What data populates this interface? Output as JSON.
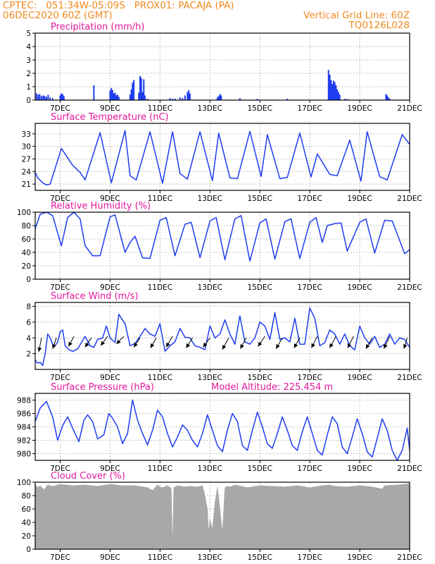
{
  "header": {
    "line1": "CPTEC:   051:34W-05:09S   PROX01: PACAJA (PA)",
    "line2": "06DEC2020 60Z (GMT)",
    "grid_note": "Vertical Grid Line: 60Z",
    "run_id": "TQ0126L028"
  },
  "colors": {
    "header": "#f08a1e",
    "title": "#e2179b",
    "series": "#1e3cf0",
    "cloud": "#a8a8a8",
    "arrow": "#000000"
  },
  "x_axis": {
    "range": [
      6,
      21
    ],
    "tick_values": [
      7,
      9,
      11,
      13,
      15,
      17,
      19,
      21
    ],
    "tick_labels": [
      "7DEC",
      "9DEC",
      "11DEC",
      "13DEC",
      "15DEC",
      "17DEC",
      "19DEC",
      "21DEC"
    ]
  },
  "chart_data": [
    {
      "type": "bar",
      "title": "Precipitation (mm/h)",
      "ylim": [
        0,
        5
      ],
      "yticks": [
        0,
        1,
        2,
        3,
        4,
        5
      ],
      "x": [
        6.05,
        6.12,
        6.18,
        6.25,
        6.32,
        6.38,
        6.45,
        6.52,
        6.6,
        6.7,
        7.0,
        7.05,
        7.1,
        7.15,
        8.35,
        9.0,
        9.05,
        9.1,
        9.15,
        9.2,
        9.25,
        9.3,
        9.35,
        9.8,
        9.85,
        9.9,
        9.95,
        10.15,
        10.2,
        10.25,
        10.3,
        10.35,
        10.4,
        10.5,
        11.4,
        11.5,
        11.6,
        11.8,
        11.9,
        12.0,
        12.1,
        12.15,
        12.2,
        13.3,
        13.35,
        13.4,
        13.45,
        14.2,
        14.9,
        16.1,
        17.75,
        17.8,
        17.85,
        17.9,
        17.95,
        18.0,
        18.05,
        18.1,
        18.15,
        18.2,
        18.4,
        18.5,
        18.6,
        20.05,
        20.1,
        20.15,
        20.2
      ],
      "values": [
        0.5,
        0.4,
        0.45,
        0.3,
        0.35,
        0.3,
        0.25,
        0.4,
        0.2,
        0.15,
        0.35,
        0.5,
        0.45,
        0.3,
        1.1,
        0.7,
        0.9,
        0.75,
        0.5,
        0.55,
        0.35,
        0.4,
        0.25,
        0.4,
        0.8,
        1.3,
        1.5,
        0.55,
        1.8,
        1.65,
        0.6,
        1.55,
        0.35,
        0.1,
        0.15,
        0.1,
        0.12,
        0.2,
        0.15,
        0.35,
        0.6,
        0.75,
        0.5,
        0.2,
        0.3,
        0.45,
        0.35,
        0.15,
        0.1,
        0.1,
        2.25,
        1.9,
        1.5,
        1.2,
        1.45,
        1.35,
        1.1,
        0.8,
        0.6,
        0.4,
        0.1,
        0.08,
        0.05,
        0.45,
        0.35,
        0.2,
        0.1
      ]
    },
    {
      "type": "line",
      "title": "Surface Temperature (nC)",
      "ylim": [
        19.5,
        35.5
      ],
      "yticks": [
        21,
        24,
        27,
        30,
        33
      ],
      "series": [
        {
          "x": [
            6.0,
            6.1,
            6.3,
            6.45,
            6.6,
            7.05,
            7.5,
            7.8,
            8.0,
            8.6,
            9.05,
            9.6,
            9.8,
            10.05,
            10.6,
            11.1,
            11.5,
            11.8,
            12.1,
            12.6,
            13.1,
            13.35,
            13.8,
            14.1,
            14.6,
            15.05,
            15.3,
            15.8,
            16.1,
            16.6,
            17.05,
            17.3,
            17.8,
            18.1,
            18.6,
            19.05,
            19.3,
            19.8,
            20.1,
            20.7,
            21.0
          ],
          "y": [
            23.8,
            22.5,
            21.3,
            20.8,
            21.0,
            29.5,
            25.5,
            23.8,
            22.0,
            33.3,
            21.3,
            33.8,
            23.0,
            22.0,
            33.5,
            21.2,
            33.5,
            23.5,
            22.2,
            33.5,
            21.8,
            33.2,
            22.5,
            22.3,
            33.6,
            22.8,
            32.8,
            22.3,
            22.6,
            33.2,
            22.7,
            28.2,
            23.3,
            23.0,
            31.5,
            21.7,
            33.5,
            22.8,
            22.0,
            32.8,
            30.5
          ]
        }
      ]
    },
    {
      "type": "line",
      "title": "Relative Humidity (%)",
      "ylim": [
        0,
        100
      ],
      "yticks": [
        0,
        20,
        40,
        60,
        80,
        100
      ],
      "series": [
        {
          "x": [
            6.0,
            6.2,
            6.45,
            6.7,
            7.05,
            7.3,
            7.55,
            7.8,
            8.0,
            8.3,
            8.6,
            9.0,
            9.2,
            9.6,
            9.8,
            10.0,
            10.3,
            10.6,
            11.0,
            11.25,
            11.6,
            12.0,
            12.25,
            12.6,
            13.0,
            13.25,
            13.6,
            14.0,
            14.25,
            14.6,
            15.0,
            15.25,
            15.6,
            16.0,
            16.25,
            16.6,
            17.0,
            17.25,
            17.5,
            17.7,
            18.0,
            18.25,
            18.5,
            19.0,
            19.25,
            19.6,
            20.0,
            20.3,
            20.8,
            21.0
          ],
          "y": [
            75.0,
            97.0,
            100.0,
            95.0,
            50.0,
            92.0,
            100.0,
            90.0,
            50.0,
            35.0,
            35.0,
            93.0,
            96.0,
            40.0,
            55.0,
            64.0,
            32.0,
            31.0,
            88.0,
            92.0,
            35.0,
            82.0,
            85.0,
            32.0,
            87.0,
            92.0,
            29.0,
            90.0,
            95.0,
            27.0,
            84.0,
            90.0,
            30.0,
            86.0,
            90.0,
            31.0,
            85.0,
            92.0,
            55.0,
            80.0,
            83.0,
            84.0,
            42.0,
            85.0,
            90.0,
            39.0,
            88.0,
            87.0,
            38.0,
            44.0
          ]
        }
      ]
    },
    {
      "type": "line",
      "title": "Surface Wind (m/s)",
      "ylim": [
        0,
        8.5
      ],
      "yticks": [
        2,
        4,
        6,
        8
      ],
      "series": [
        {
          "x": [
            6.0,
            6.1,
            6.2,
            6.3,
            6.4,
            6.5,
            6.6,
            6.7,
            6.8,
            6.9,
            7.0,
            7.1,
            7.2,
            7.35,
            7.5,
            7.7,
            8.0,
            8.2,
            8.35,
            8.5,
            8.7,
            8.85,
            9.0,
            9.2,
            9.35,
            9.6,
            9.8,
            10.0,
            10.2,
            10.4,
            10.6,
            10.8,
            11.0,
            11.2,
            11.4,
            11.6,
            11.8,
            12.0,
            12.2,
            12.4,
            12.6,
            12.8,
            13.0,
            13.2,
            13.4,
            13.6,
            13.8,
            14.0,
            14.2,
            14.4,
            14.6,
            14.8,
            15.0,
            15.2,
            15.4,
            15.6,
            15.8,
            16.0,
            16.2,
            16.4,
            16.6,
            16.8,
            17.0,
            17.2,
            17.4,
            17.6,
            17.8,
            18.0,
            18.2,
            18.4,
            18.6,
            18.8,
            19.0,
            19.2,
            19.4,
            19.6,
            19.8,
            20.0,
            20.2,
            20.4,
            20.6,
            20.8,
            21.0
          ],
          "y": [
            1.2,
            0.8,
            0.9,
            0.5,
            2.0,
            4.5,
            4.0,
            3.2,
            3.0,
            3.5,
            4.8,
            5.0,
            3.0,
            2.5,
            2.3,
            2.6,
            4.2,
            3.0,
            2.8,
            3.8,
            4.0,
            5.5,
            4.0,
            3.4,
            7.0,
            5.8,
            3.0,
            3.3,
            4.2,
            5.2,
            4.5,
            4.2,
            5.8,
            2.3,
            3.0,
            3.5,
            5.2,
            4.1,
            4.0,
            3.0,
            2.8,
            2.5,
            5.5,
            4.0,
            4.5,
            6.3,
            4.5,
            3.2,
            6.8,
            3.5,
            3.2,
            4.0,
            6.0,
            5.5,
            3.8,
            7.2,
            3.8,
            4.0,
            3.5,
            6.5,
            3.2,
            3.2,
            7.8,
            6.5,
            3.0,
            3.4,
            5.0,
            4.5,
            3.2,
            4.5,
            3.0,
            2.5,
            5.5,
            4.0,
            3.2,
            4.2,
            2.8,
            3.2,
            4.5,
            3.2,
            4.0,
            3.8,
            2.8
          ]
        }
      ],
      "vectors": [
        {
          "x": 6.25,
          "y": 4.0,
          "dx": -0.25,
          "dy": -1.8
        },
        {
          "x": 6.85,
          "y": 4.0,
          "dx": -0.35,
          "dy": -1.4
        },
        {
          "x": 7.55,
          "y": 4.2,
          "dx": -0.5,
          "dy": -1.3
        },
        {
          "x": 8.25,
          "y": 4.0,
          "dx": -0.6,
          "dy": -1.2
        },
        {
          "x": 8.9,
          "y": 4.2,
          "dx": -0.65,
          "dy": -1.2
        },
        {
          "x": 9.55,
          "y": 4.2,
          "dx": -0.7,
          "dy": -1.0
        },
        {
          "x": 10.2,
          "y": 4.0,
          "dx": -0.6,
          "dy": -1.2
        },
        {
          "x": 10.85,
          "y": 4.0,
          "dx": -0.55,
          "dy": -1.3
        },
        {
          "x": 11.5,
          "y": 4.2,
          "dx": -0.6,
          "dy": -1.4
        },
        {
          "x": 12.3,
          "y": 4.0,
          "dx": -0.6,
          "dy": -1.3
        },
        {
          "x": 13.0,
          "y": 4.0,
          "dx": -0.65,
          "dy": -1.2
        },
        {
          "x": 13.75,
          "y": 4.0,
          "dx": -0.6,
          "dy": -1.5
        },
        {
          "x": 14.45,
          "y": 4.0,
          "dx": -0.55,
          "dy": -1.4
        },
        {
          "x": 15.2,
          "y": 4.2,
          "dx": -0.65,
          "dy": -1.3
        },
        {
          "x": 15.9,
          "y": 4.0,
          "dx": -0.6,
          "dy": -1.4
        },
        {
          "x": 16.6,
          "y": 4.0,
          "dx": -0.55,
          "dy": -1.3
        },
        {
          "x": 17.3,
          "y": 4.2,
          "dx": -0.55,
          "dy": -1.5
        },
        {
          "x": 18.05,
          "y": 4.2,
          "dx": -0.6,
          "dy": -1.5
        },
        {
          "x": 18.75,
          "y": 4.2,
          "dx": -0.55,
          "dy": -1.5
        },
        {
          "x": 19.5,
          "y": 4.0,
          "dx": -0.6,
          "dy": -1.4
        },
        {
          "x": 20.2,
          "y": 4.2,
          "dx": -0.55,
          "dy": -1.6
        },
        {
          "x": 20.9,
          "y": 4.0,
          "dx": -0.3,
          "dy": -1.4
        }
      ]
    },
    {
      "type": "line",
      "title": "Surface Pressure (hPa)",
      "annotation": "Model Altitude: 225.454  m",
      "ylim": [
        979.0,
        989.0
      ],
      "yticks": [
        980,
        982,
        984,
        986,
        988
      ],
      "series": [
        {
          "x": [
            6.0,
            6.2,
            6.45,
            6.7,
            6.9,
            7.1,
            7.3,
            7.5,
            7.75,
            7.95,
            8.1,
            8.3,
            8.5,
            8.75,
            8.95,
            9.1,
            9.3,
            9.5,
            9.7,
            9.9,
            10.1,
            10.3,
            10.5,
            10.7,
            10.9,
            11.1,
            11.3,
            11.5,
            11.7,
            11.9,
            12.1,
            12.3,
            12.5,
            12.7,
            12.9,
            13.1,
            13.3,
            13.5,
            13.7,
            13.9,
            14.1,
            14.3,
            14.5,
            14.7,
            14.9,
            15.1,
            15.3,
            15.5,
            15.7,
            15.9,
            16.1,
            16.3,
            16.5,
            16.7,
            16.9,
            17.1,
            17.3,
            17.5,
            17.7,
            17.9,
            18.1,
            18.3,
            18.5,
            18.7,
            18.9,
            19.1,
            19.3,
            19.5,
            19.7,
            19.9,
            20.1,
            20.3,
            20.5,
            20.7,
            20.9,
            21.0
          ],
          "y": [
            984.8,
            986.8,
            987.8,
            985.5,
            982.0,
            984.2,
            985.5,
            983.8,
            981.8,
            985.0,
            985.8,
            984.8,
            982.2,
            982.8,
            986.0,
            985.3,
            984.0,
            981.5,
            983.0,
            988.0,
            985.0,
            983.0,
            981.3,
            983.5,
            986.5,
            985.5,
            983.0,
            981.0,
            982.5,
            984.3,
            983.5,
            982.0,
            981.0,
            983.0,
            985.8,
            983.5,
            981.2,
            980.3,
            983.5,
            986.0,
            984.8,
            981.2,
            980.5,
            983.5,
            986.2,
            984.0,
            981.5,
            980.8,
            983.0,
            985.5,
            983.5,
            981.2,
            980.5,
            983.3,
            985.5,
            983.0,
            980.5,
            979.8,
            982.8,
            985.5,
            984.5,
            981.0,
            980.0,
            982.5,
            985.2,
            983.0,
            980.3,
            979.5,
            982.3,
            985.2,
            983.5,
            980.5,
            979.0,
            980.5,
            983.8,
            980.5
          ]
        }
      ]
    },
    {
      "type": "area",
      "title": "Cloud Cover (%)",
      "ylim": [
        0,
        100
      ],
      "yticks": [
        0,
        20,
        40,
        60,
        80,
        100
      ],
      "x": [
        6.0,
        6.1,
        6.2,
        6.35,
        6.5,
        6.7,
        7.0,
        7.5,
        8.0,
        8.5,
        9.0,
        9.5,
        10.0,
        10.5,
        10.7,
        10.9,
        11.0,
        11.1,
        11.3,
        11.45,
        11.5,
        11.55,
        11.7,
        12.0,
        12.2,
        12.5,
        12.7,
        12.8,
        12.9,
        12.95,
        13.0,
        13.05,
        13.1,
        13.2,
        13.3,
        13.4,
        13.45,
        13.5,
        13.55,
        13.6,
        13.7,
        13.8,
        14.0,
        14.5,
        15.0,
        15.5,
        16.0,
        16.5,
        17.0,
        17.5,
        17.8,
        18.0,
        18.5,
        19.0,
        19.5,
        19.9,
        20.0,
        20.5,
        20.8,
        21.0
      ],
      "values": [
        97.0,
        92.0,
        95.0,
        89.0,
        96.0,
        94.0,
        97.0,
        95.0,
        96.0,
        94.0,
        97.0,
        95.0,
        95.0,
        92.0,
        88.0,
        96.0,
        93.0,
        92.0,
        95.0,
        91.0,
        2.0,
        92.0,
        95.0,
        93.0,
        94.0,
        93.0,
        95.0,
        80.0,
        60.0,
        25.0,
        45.0,
        38.0,
        30.0,
        70.0,
        93.0,
        60.0,
        42.0,
        25.0,
        60.0,
        92.0,
        94.0,
        93.0,
        96.0,
        92.0,
        95.0,
        94.0,
        93.0,
        95.0,
        92.0,
        95.0,
        96.0,
        94.0,
        93.0,
        95.0,
        93.0,
        90.0,
        95.0,
        96.0,
        97.0,
        98.0
      ]
    }
  ]
}
